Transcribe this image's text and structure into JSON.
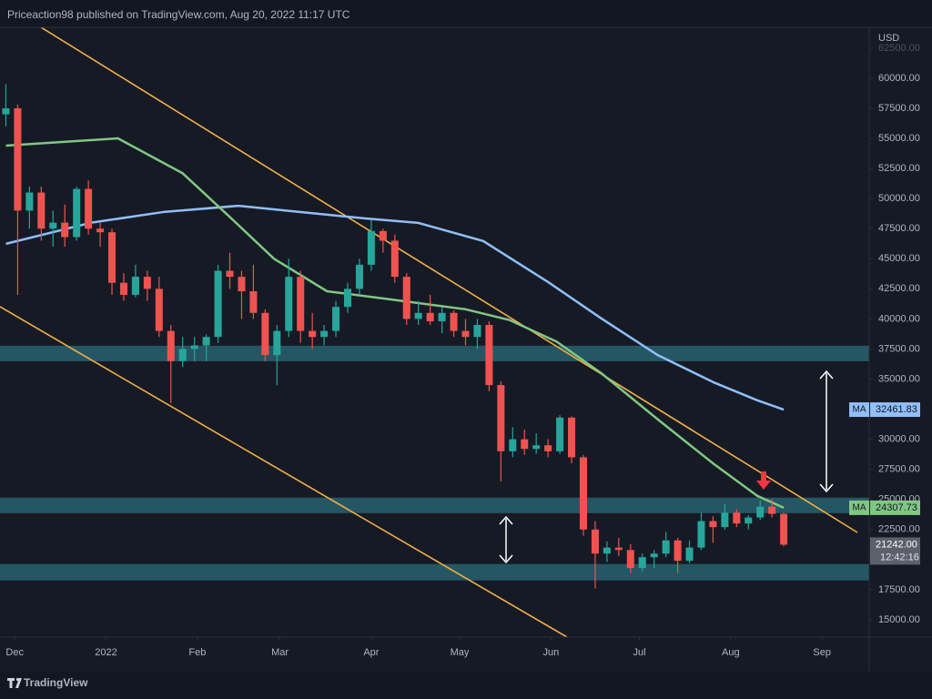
{
  "header": {
    "title": "Priceaction98 published on TradingView.com, Aug 20, 2022 11:17 UTC"
  },
  "footer": {
    "brand": "TradingView"
  },
  "chart_data": {
    "type": "candlestick",
    "currency": "USD",
    "up_color": "#26a69a",
    "down_color": "#ef5350",
    "x": [
      -3,
      1,
      5,
      9,
      13,
      17,
      21,
      25,
      29,
      33,
      37,
      41,
      45,
      49,
      53,
      57,
      61,
      65,
      69,
      73,
      77,
      81,
      85,
      89,
      93,
      97,
      101,
      105,
      109,
      113,
      117,
      121,
      125,
      129,
      133,
      137,
      141,
      145,
      149,
      153,
      157,
      161,
      165,
      169,
      173,
      177,
      181,
      185,
      189,
      193,
      197,
      201,
      205,
      209,
      213,
      217,
      221,
      225,
      229,
      233,
      237,
      241,
      245,
      249,
      253,
      257,
      261
    ],
    "open": [
      57000,
      57500,
      49000,
      50500,
      47500,
      48000,
      46800,
      50800,
      47500,
      47200,
      43000,
      42000,
      43500,
      42500,
      39000,
      36500,
      37500,
      37800,
      38500,
      44000,
      43500,
      42300,
      40500,
      37000,
      39000,
      43500,
      39000,
      38500,
      39000,
      41000,
      42500,
      44500,
      47300,
      46500,
      43500,
      40000,
      40500,
      39800,
      40500,
      39000,
      38500,
      39500,
      34500,
      29000,
      30000,
      29200,
      29500,
      29000,
      31800,
      28500,
      22500,
      20500,
      21000,
      20800,
      19300,
      20200,
      20500,
      21600,
      19900,
      21000,
      23200,
      22700,
      23900,
      23000,
      23500,
      24400,
      23800
    ],
    "high": [
      59500,
      57800,
      51000,
      51000,
      49000,
      49500,
      51000,
      51500,
      48000,
      47500,
      43800,
      44500,
      44000,
      43500,
      39500,
      38500,
      38500,
      38700,
      44500,
      45500,
      44000,
      44500,
      40800,
      39500,
      45000,
      44000,
      40500,
      39500,
      41500,
      43000,
      45000,
      48200,
      47500,
      47000,
      43800,
      41500,
      42000,
      41000,
      40700,
      40000,
      40000,
      39800,
      34800,
      31000,
      30800,
      30500,
      30000,
      32000,
      31900,
      28700,
      23200,
      21500,
      21800,
      21300,
      20500,
      20800,
      22300,
      21800,
      21600,
      23900,
      23600,
      24600,
      24200,
      23700,
      24900,
      25000,
      23900
    ],
    "low": [
      56000,
      42000,
      47500,
      46500,
      46000,
      46000,
      46500,
      47000,
      46000,
      42000,
      41500,
      41800,
      41500,
      38500,
      33000,
      36000,
      36500,
      36500,
      38000,
      42500,
      40000,
      40000,
      36500,
      34500,
      38500,
      38000,
      37500,
      37800,
      38500,
      40500,
      42000,
      44000,
      45500,
      43000,
      39500,
      39500,
      39500,
      38800,
      38500,
      37800,
      37500,
      34000,
      26500,
      28500,
      28700,
      28800,
      28500,
      28800,
      28000,
      22000,
      17600,
      19800,
      20300,
      18900,
      19000,
      19300,
      20200,
      18900,
      19700,
      20800,
      21400,
      22500,
      22700,
      22500,
      23300,
      23500,
      21100
    ],
    "close": [
      57500,
      49000,
      50500,
      47500,
      48000,
      46800,
      50800,
      47500,
      47200,
      43000,
      42000,
      43500,
      42500,
      39000,
      36500,
      37500,
      37800,
      38500,
      44000,
      43500,
      42300,
      40500,
      37000,
      39000,
      43500,
      39000,
      38500,
      39000,
      41000,
      42500,
      44500,
      47300,
      46500,
      43500,
      40000,
      40500,
      39800,
      40500,
      39000,
      38500,
      39500,
      34500,
      29000,
      30000,
      29200,
      29500,
      29000,
      31800,
      28500,
      22500,
      20500,
      21000,
      20800,
      19300,
      20200,
      20500,
      21600,
      19900,
      21000,
      23200,
      22700,
      23900,
      23000,
      23500,
      24400,
      23800,
      21242
    ],
    "last_price_label": "21242.00",
    "countdown": "12:42:16",
    "lines": [
      {
        "name": "MA",
        "color": "#90bff9",
        "x": [
          -3,
          26,
          51,
          76,
          94,
          119,
          137,
          159,
          181,
          199,
          218,
          237,
          252,
          261
        ],
        "values": [
          46240,
          48000,
          48900,
          49400,
          48950,
          48350,
          47980,
          46470,
          43070,
          40050,
          37030,
          34750,
          33240,
          32461.83
        ]
      },
      {
        "name": "MA",
        "color": "#81c784",
        "x": [
          -3,
          35,
          57,
          72,
          88,
          106,
          125,
          153,
          168,
          184,
          199,
          218,
          237,
          252,
          261
        ],
        "values": [
          54400,
          55000,
          52100,
          48700,
          45000,
          42300,
          41700,
          40800,
          39900,
          38100,
          35500,
          31700,
          28000,
          25300,
          24307.73
        ]
      }
    ],
    "zones": [
      {
        "low": 36480,
        "high": 37770
      },
      {
        "low": 23860,
        "high": 25150
      },
      {
        "low": 18270,
        "high": 19630
      }
    ],
    "xlim": [
      -5,
      290
    ],
    "xticks": [
      {
        "value": 0,
        "label": "Dec"
      },
      {
        "value": 31,
        "label": "2022"
      },
      {
        "value": 62,
        "label": "Feb"
      },
      {
        "value": 90,
        "label": "Mar"
      },
      {
        "value": 121,
        "label": "Apr"
      },
      {
        "value": 151,
        "label": "May"
      },
      {
        "value": 182,
        "label": "Jun"
      },
      {
        "value": 212,
        "label": "Jul"
      },
      {
        "value": 243,
        "label": "Aug"
      },
      {
        "value": 274,
        "label": "Sep"
      }
    ],
    "ylim": [
      13560,
      64230
    ],
    "yticks": [
      {
        "value": 15000,
        "label": "15000.00"
      },
      {
        "value": 17500,
        "label": "17500.00"
      },
      {
        "value": 20000,
        "label": "20000.00"
      },
      {
        "value": 22500,
        "label": "22500.00"
      },
      {
        "value": 25000,
        "label": "25000.00"
      },
      {
        "value": 27500,
        "label": "27500.00"
      },
      {
        "value": 30000,
        "label": "30000.00"
      },
      {
        "value": 32500,
        "label": "32500.00"
      },
      {
        "value": 35000,
        "label": "35000.00"
      },
      {
        "value": 37500,
        "label": "37500.00"
      },
      {
        "value": 40000,
        "label": "40000.00"
      },
      {
        "value": 42500,
        "label": "42500.00"
      },
      {
        "value": 45000,
        "label": "45000.00"
      },
      {
        "value": 47500,
        "label": "47500.00"
      },
      {
        "value": 50000,
        "label": "50000.00"
      },
      {
        "value": 52500,
        "label": "52500.00"
      },
      {
        "value": 55000,
        "label": "55000.00"
      },
      {
        "value": 57500,
        "label": "57500.00"
      },
      {
        "value": 60000,
        "label": "60000.00"
      },
      {
        "value": 62500,
        "label": "62500.00"
      }
    ]
  }
}
